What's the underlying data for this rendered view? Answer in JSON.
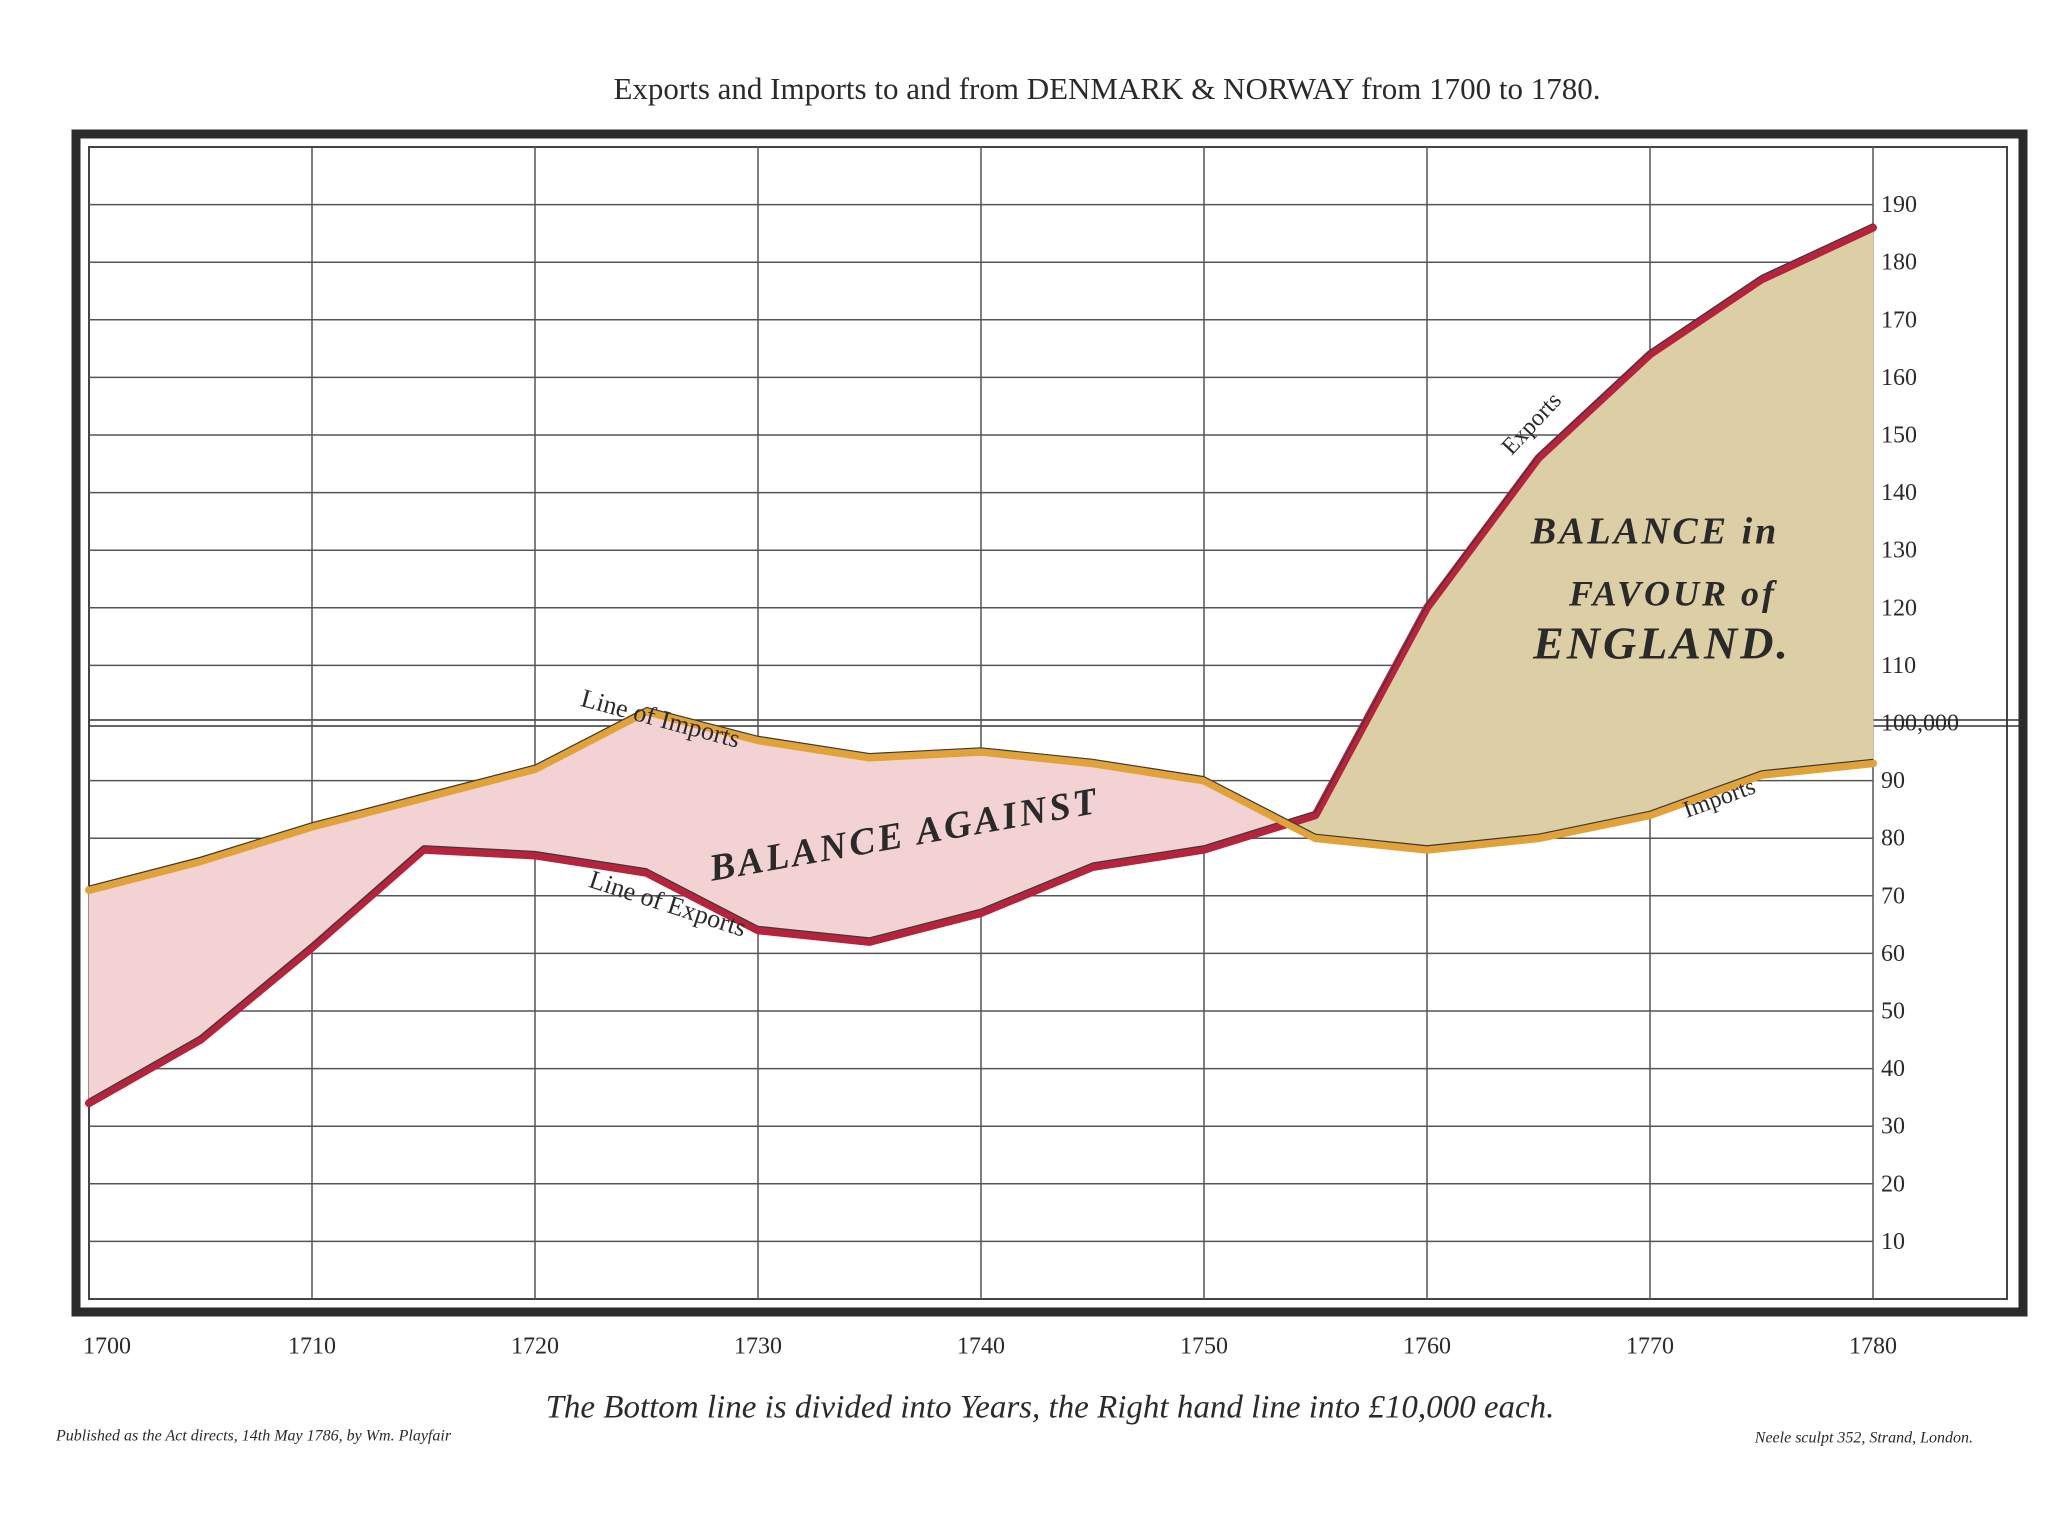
{
  "chart_data": {
    "type": "line",
    "title": "Exports and Imports to and from DENMARK & NORWAY from 1700 to 1780.",
    "x": [
      1700,
      1705,
      1710,
      1715,
      1720,
      1725,
      1730,
      1735,
      1740,
      1745,
      1750,
      1755,
      1760,
      1765,
      1770,
      1775,
      1780
    ],
    "xlim": [
      1700,
      1780
    ],
    "xticks": [
      1700,
      1710,
      1720,
      1730,
      1740,
      1750,
      1760,
      1770,
      1780
    ],
    "ylim": [
      0,
      200
    ],
    "yticks": [
      10,
      20,
      30,
      40,
      50,
      60,
      70,
      80,
      90,
      {
        "value": 100,
        "label": "100,000"
      },
      110,
      120,
      130,
      140,
      150,
      160,
      170,
      180,
      190
    ],
    "grid": true,
    "series": [
      {
        "name": "Exports",
        "color": "#b5233c",
        "values": [
          34,
          45,
          61,
          78,
          77,
          74,
          64,
          62,
          67,
          75,
          78,
          84,
          120,
          146,
          164,
          177,
          186
        ]
      },
      {
        "name": "Imports",
        "color": "#e2a23a",
        "values": [
          71,
          76,
          82,
          87,
          92,
          102,
          97,
          94,
          95,
          93,
          90,
          80,
          78,
          80,
          84,
          91,
          93
        ]
      }
    ],
    "fill_against": "#f3d2d4",
    "fill_favour": "#dccfa6",
    "annotations": [
      "Line of Imports",
      "Line of Exports",
      "BALANCE AGAINST",
      "BALANCE in",
      "FAVOUR of",
      "ENGLAND."
    ],
    "caption": "The Bottom line is divided into Years, the Right hand line into £10,000 each.",
    "credits": [
      "Published as the Act directs, 14th May 1786, by Wm. Playfair",
      "Neele sculpt 352, Strand, London."
    ]
  }
}
